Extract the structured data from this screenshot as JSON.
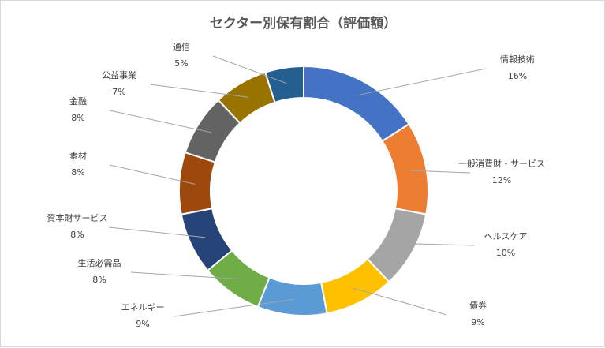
{
  "chart_data": {
    "type": "pie",
    "variant": "doughnut",
    "title": "セクター別保有割合（評価額）",
    "legend": "none",
    "slices": [
      {
        "label": "情報技術",
        "value_label": "16%",
        "value": 16,
        "color": "#4472C4"
      },
      {
        "label": "一般消費財・サービス",
        "value_label": "12%",
        "value": 12,
        "color": "#ED7D31"
      },
      {
        "label": "ヘルスケア",
        "value_label": "10%",
        "value": 10,
        "color": "#A5A5A5"
      },
      {
        "label": "債券",
        "value_label": "9%",
        "value": 9,
        "color": "#FFC000"
      },
      {
        "label": "エネルギー",
        "value_label": "9%",
        "value": 9,
        "color": "#5B9BD5"
      },
      {
        "label": "生活必需品",
        "value_label": "8%",
        "value": 8,
        "color": "#70AD47"
      },
      {
        "label": "資本財サービス",
        "value_label": "8%",
        "value": 8,
        "color": "#264478"
      },
      {
        "label": "素材",
        "value_label": "8%",
        "value": 8,
        "color": "#9E480E"
      },
      {
        "label": "金融",
        "value_label": "8%",
        "value": 8,
        "color": "#636363"
      },
      {
        "label": "公益事業",
        "value_label": "7%",
        "value": 7,
        "color": "#997300"
      },
      {
        "label": "通信",
        "value_label": "5%",
        "value": 5,
        "color": "#255E91"
      }
    ]
  }
}
